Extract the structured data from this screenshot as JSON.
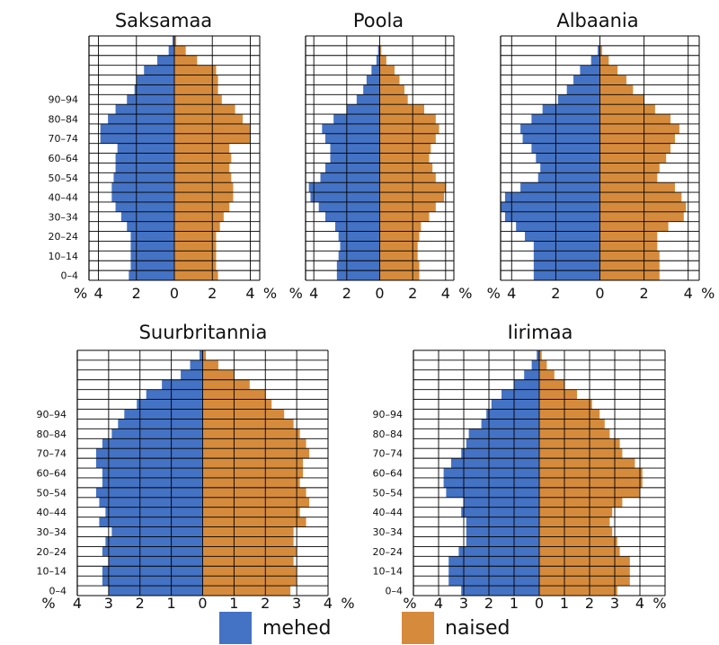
{
  "colors": {
    "men": "#4472c4",
    "women": "#d68b3c",
    "grid": "#000000"
  },
  "legend": {
    "men_label": "mehed",
    "women_label": "naised"
  },
  "chart_data": [
    {
      "type": "bar",
      "orientation": "horizontal-population-pyramid",
      "title": "Saksamaa",
      "age_labels": [
        "0–4",
        "10–14",
        "20–24",
        "30–34",
        "40–44",
        "50–54",
        "60–64",
        "70–74",
        "80–84",
        "90–94"
      ],
      "axis_unit": "%",
      "xlim": [
        -4.5,
        4.5
      ],
      "ticks": [
        -4,
        -2,
        0,
        2,
        4
      ],
      "tick_labels": [
        "4",
        "2",
        "0",
        "2",
        "4"
      ],
      "series": [
        {
          "name": "mehed",
          "values": [
            2.4,
            2.3,
            2.3,
            2.3,
            2.3,
            2.5,
            2.8,
            3.1,
            3.3,
            3.3,
            3.2,
            3.1,
            3.1,
            3.0,
            3.9,
            3.9,
            3.5,
            3.1,
            2.5,
            2.1,
            2.0,
            1.6,
            0.9,
            0.3,
            0.1
          ]
        },
        {
          "name": "naised",
          "values": [
            2.3,
            2.2,
            2.2,
            2.2,
            2.2,
            2.4,
            2.6,
            2.9,
            3.1,
            3.1,
            3.0,
            2.9,
            3.0,
            2.9,
            4.0,
            4.0,
            3.6,
            3.2,
            2.5,
            2.3,
            2.3,
            2.2,
            1.2,
            0.6,
            0.1
          ]
        }
      ]
    },
    {
      "type": "bar",
      "orientation": "horizontal-population-pyramid",
      "title": "Poola",
      "age_labels": [
        "0–4",
        "10–14",
        "20–24",
        "30–34",
        "40–44",
        "50–54",
        "60–64",
        "70–74",
        "80–84",
        "90–94"
      ],
      "axis_unit": "%",
      "xlim": [
        -4.5,
        4.5
      ],
      "ticks": [
        -4,
        -2,
        0,
        2,
        4
      ],
      "tick_labels": [
        "4",
        "2",
        "0",
        "2",
        "4"
      ],
      "series": [
        {
          "name": "mehed",
          "values": [
            2.6,
            2.6,
            2.5,
            2.4,
            2.5,
            2.7,
            3.3,
            3.7,
            4.2,
            4.3,
            3.6,
            3.3,
            3.0,
            3.0,
            3.3,
            3.5,
            2.8,
            2.0,
            1.4,
            1.0,
            0.8,
            0.5,
            0.2,
            0.1,
            0.0
          ]
        },
        {
          "name": "naised",
          "values": [
            2.4,
            2.4,
            2.3,
            2.3,
            2.4,
            2.5,
            3.0,
            3.4,
            3.9,
            4.0,
            3.4,
            3.2,
            3.0,
            3.1,
            3.4,
            3.6,
            3.4,
            2.7,
            1.7,
            1.5,
            1.2,
            0.9,
            0.4,
            0.1,
            0.0
          ]
        }
      ]
    },
    {
      "type": "bar",
      "orientation": "horizontal-population-pyramid",
      "title": "Albaania",
      "age_labels": [
        "0–4",
        "10–14",
        "20–24",
        "30–34",
        "40–44",
        "50–54",
        "60–64",
        "70–74",
        "80–84",
        "90–94"
      ],
      "axis_unit": "%",
      "xlim": [
        -4.5,
        4.5
      ],
      "ticks": [
        -4,
        -2,
        0,
        2,
        4
      ],
      "tick_labels": [
        "4",
        "2",
        "0",
        "2",
        "4"
      ],
      "series": [
        {
          "name": "mehed",
          "values": [
            3.0,
            3.0,
            3.0,
            3.0,
            3.4,
            3.8,
            4.3,
            4.5,
            4.3,
            3.6,
            2.8,
            2.7,
            2.9,
            3.1,
            3.5,
            3.6,
            3.1,
            2.6,
            1.9,
            1.5,
            1.2,
            0.9,
            0.4,
            0.1,
            0.0
          ]
        },
        {
          "name": "naised",
          "values": [
            2.7,
            2.7,
            2.7,
            2.6,
            2.6,
            3.1,
            3.8,
            3.9,
            3.7,
            3.4,
            2.6,
            2.7,
            3.0,
            3.2,
            3.4,
            3.6,
            3.2,
            2.5,
            2.0,
            1.5,
            1.2,
            0.8,
            0.4,
            0.1,
            0.0
          ]
        }
      ]
    },
    {
      "type": "bar",
      "orientation": "horizontal-population-pyramid",
      "title": "Suurbritannia",
      "age_labels": [
        "0–4",
        "10–14",
        "20–24",
        "30–34",
        "40–44",
        "50–54",
        "60–64",
        "70–74",
        "80–84",
        "90–94"
      ],
      "axis_unit": "%",
      "xlim": [
        -4,
        4
      ],
      "ticks": [
        -4,
        -3,
        -2,
        -1,
        0,
        1,
        2,
        3,
        4
      ],
      "tick_labels": [
        "4",
        "3",
        "2",
        "1",
        "0",
        "1",
        "2",
        "3",
        "4"
      ],
      "series": [
        {
          "name": "mehed",
          "values": [
            3.0,
            3.2,
            3.2,
            3.0,
            3.2,
            3.1,
            2.9,
            3.3,
            3.1,
            3.3,
            3.4,
            3.2,
            3.2,
            3.4,
            3.4,
            3.2,
            2.9,
            2.7,
            2.5,
            2.1,
            1.8,
            1.3,
            0.7,
            0.4,
            0.1
          ]
        },
        {
          "name": "naised",
          "values": [
            2.8,
            3.0,
            3.0,
            2.9,
            3.0,
            2.9,
            2.9,
            3.3,
            3.1,
            3.4,
            3.3,
            3.1,
            3.2,
            3.2,
            3.4,
            3.3,
            3.1,
            2.9,
            2.6,
            2.2,
            2.0,
            1.5,
            1.0,
            0.5,
            0.1
          ]
        }
      ]
    },
    {
      "type": "bar",
      "orientation": "horizontal-population-pyramid",
      "title": "Iirimaa",
      "age_labels": [
        "0–4",
        "10–14",
        "20–24",
        "30–34",
        "40–44",
        "50–54",
        "60–64",
        "70–74",
        "80–84",
        "90–94"
      ],
      "axis_unit": "%",
      "xlim": [
        -5,
        5
      ],
      "ticks": [
        -4,
        -3,
        -2,
        -1,
        0,
        1,
        2,
        3,
        4
      ],
      "tick_labels": [
        "4",
        "3",
        "2",
        "1",
        "0",
        "1",
        "2",
        "3",
        "4"
      ],
      "series": [
        {
          "name": "mehed",
          "values": [
            3.1,
            3.6,
            3.6,
            3.6,
            3.2,
            2.9,
            2.9,
            2.9,
            3.1,
            3.0,
            3.7,
            3.8,
            3.8,
            3.5,
            3.1,
            2.9,
            2.8,
            2.3,
            2.1,
            1.9,
            1.5,
            1.0,
            0.6,
            0.3,
            0.1
          ]
        },
        {
          "name": "naised",
          "values": [
            3.1,
            3.6,
            3.6,
            3.6,
            3.2,
            3.1,
            2.9,
            2.8,
            2.9,
            3.3,
            4.0,
            4.1,
            4.1,
            3.8,
            3.3,
            3.2,
            2.8,
            2.6,
            2.4,
            2.1,
            1.5,
            1.0,
            0.6,
            0.3,
            0.1
          ]
        }
      ]
    }
  ]
}
